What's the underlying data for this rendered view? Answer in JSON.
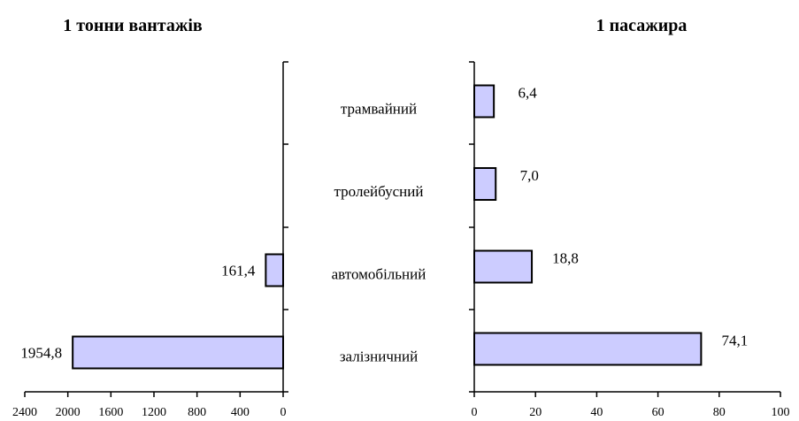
{
  "chart_data": [
    {
      "type": "bar",
      "orientation": "horizontal",
      "x_axis_reversed": true,
      "title": "1 тонни вантажів",
      "categories": [
        "трамвайний",
        "тролейбусний",
        "автомобільний",
        "залізничний"
      ],
      "values": [
        null,
        null,
        161.4,
        1954.8
      ],
      "value_labels": [
        "",
        "",
        "161,4",
        "1954,8"
      ],
      "xlim": [
        0,
        2400
      ],
      "xticks": [
        2400,
        2000,
        1600,
        1200,
        800,
        400,
        0
      ],
      "bar_color": "#ccccff",
      "grid": false
    },
    {
      "type": "bar",
      "orientation": "horizontal",
      "title": "1 пасажира",
      "categories": [
        "трамвайний",
        "тролейбусний",
        "автомобільний",
        "залізничний"
      ],
      "values": [
        6.4,
        7.0,
        18.8,
        74.1
      ],
      "value_labels": [
        "6,4",
        "7,0",
        "18,8",
        "74,1"
      ],
      "xlim": [
        0,
        100
      ],
      "xticks": [
        0,
        20,
        40,
        60,
        80,
        100
      ],
      "bar_color": "#ccccff",
      "grid": false
    }
  ]
}
